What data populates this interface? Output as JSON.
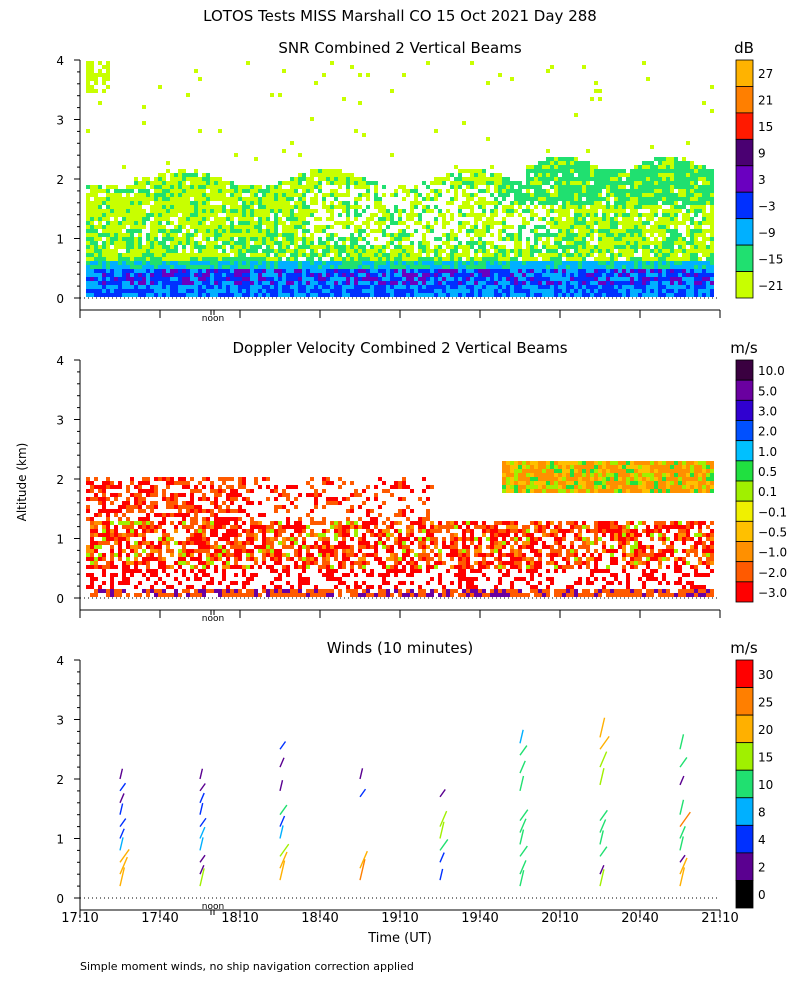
{
  "title": "LOTOS Tests MISS Marshall CO  15 Oct 2021 Day 288",
  "footer": "Simple moment winds, no ship navigation correction applied",
  "chart_data": [
    {
      "type": "heatmap",
      "title": "SNR Combined 2 Vertical Beams",
      "ylabel": "",
      "ylim": [
        0,
        4
      ],
      "yticks": [
        "0",
        "1",
        "2",
        "3",
        "4"
      ],
      "noon_label": "noon",
      "colorbar": {
        "unit": "dB",
        "labels": [
          "27",
          "21",
          "15",
          "9",
          "3",
          "−3",
          "−9",
          "−15",
          "−21"
        ],
        "colors": [
          "#ffb300",
          "#ff7f00",
          "#ff1a00",
          "#4a0072",
          "#6a00c0",
          "#0030ff",
          "#00b0ff",
          "#20e070",
          "#c8ff00"
        ]
      },
      "summary": {
        "echo_top_km_start": 2.1,
        "echo_top_km_end": 2.3,
        "strong_layer_km": [
          0.25,
          0.55
        ]
      }
    },
    {
      "type": "heatmap",
      "title": "Doppler Velocity Combined 2 Vertical Beams",
      "ylabel": "Altitude (km)",
      "ylim": [
        0,
        4
      ],
      "yticks": [
        "0",
        "1",
        "2",
        "3",
        "4"
      ],
      "noon_label": "noon",
      "colorbar": {
        "unit": "m/s",
        "labels": [
          "10.0",
          "5.0",
          "3.0",
          "2.0",
          "1.0",
          "0.5",
          "0.1",
          "−0.1",
          "−0.5",
          "−1.0",
          "−2.0",
          "−3.0"
        ],
        "colors": [
          "#3a0040",
          "#6a00a0",
          "#3000d0",
          "#0050ff",
          "#00c0ff",
          "#20e040",
          "#a0f000",
          "#f0f000",
          "#ffc000",
          "#ff9000",
          "#ff5a00",
          "#ff0000"
        ]
      }
    },
    {
      "type": "scatter",
      "title": "Winds (10 minutes)",
      "ylabel": "",
      "xlabel": "Time (UT)",
      "ylim": [
        0,
        4
      ],
      "yticks": [
        "0",
        "1",
        "2",
        "3",
        "4"
      ],
      "xticks": [
        "17:10",
        "17:40",
        "18:10",
        "18:40",
        "19:10",
        "19:40",
        "20:10",
        "20:40",
        "21:10"
      ],
      "noon_label": "noon",
      "colorbar": {
        "unit": "m/s",
        "labels": [
          "30",
          "25",
          "20",
          "15",
          "10",
          "8",
          "4",
          "2",
          "0"
        ],
        "colors": [
          "#ff0000",
          "#ff7f00",
          "#ffb000",
          "#a0f000",
          "#20e070",
          "#00b0ff",
          "#0030ff",
          "#5a0090",
          "#000000"
        ]
      },
      "profiles": [
        {
          "time": "17:25",
          "altitudes": [
            0.2,
            0.4,
            0.6,
            0.8,
            1.0,
            1.2,
            1.4,
            1.6,
            1.8,
            2.0
          ],
          "speeds": [
            20,
            22,
            20,
            8,
            4,
            5,
            4,
            3,
            4,
            2
          ]
        },
        {
          "time": "17:55",
          "altitudes": [
            0.2,
            0.4,
            0.6,
            0.8,
            1.0,
            1.2,
            1.4,
            1.6,
            1.8,
            2.0
          ],
          "speeds": [
            18,
            2,
            2,
            8,
            8,
            6,
            5,
            4,
            3,
            2
          ]
        },
        {
          "time": "18:25",
          "altitudes": [
            0.3,
            0.5,
            0.7,
            1.0,
            1.2,
            1.4,
            1.8,
            2.2,
            2.5
          ],
          "speeds": [
            22,
            20,
            18,
            8,
            6,
            10,
            3,
            3,
            4
          ]
        },
        {
          "time": "18:55",
          "altitudes": [
            0.3,
            0.5,
            1.7,
            2.0
          ],
          "speeds": [
            25,
            22,
            4,
            3
          ]
        },
        {
          "time": "19:25",
          "altitudes": [
            0.3,
            0.6,
            0.8,
            1.0,
            1.2,
            1.7
          ],
          "speeds": [
            4,
            4,
            14,
            16,
            18,
            3
          ]
        },
        {
          "time": "19:55",
          "altitudes": [
            0.2,
            0.4,
            0.7,
            0.9,
            1.1,
            1.3,
            1.8,
            2.1,
            2.4,
            2.6
          ],
          "speeds": [
            14,
            14,
            12,
            12,
            14,
            14,
            12,
            10,
            10,
            9
          ]
        },
        {
          "time": "20:25",
          "altitudes": [
            0.2,
            0.4,
            0.7,
            0.9,
            1.1,
            1.3,
            1.9,
            2.2,
            2.5,
            2.7
          ],
          "speeds": [
            16,
            2,
            10,
            10,
            12,
            12,
            16,
            18,
            20,
            22
          ]
        },
        {
          "time": "20:55",
          "altitudes": [
            0.2,
            0.4,
            0.6,
            0.8,
            1.0,
            1.2,
            1.4,
            1.9,
            2.2,
            2.5
          ],
          "speeds": [
            20,
            20,
            2,
            10,
            10,
            25,
            12,
            2,
            10,
            12
          ]
        }
      ]
    }
  ]
}
